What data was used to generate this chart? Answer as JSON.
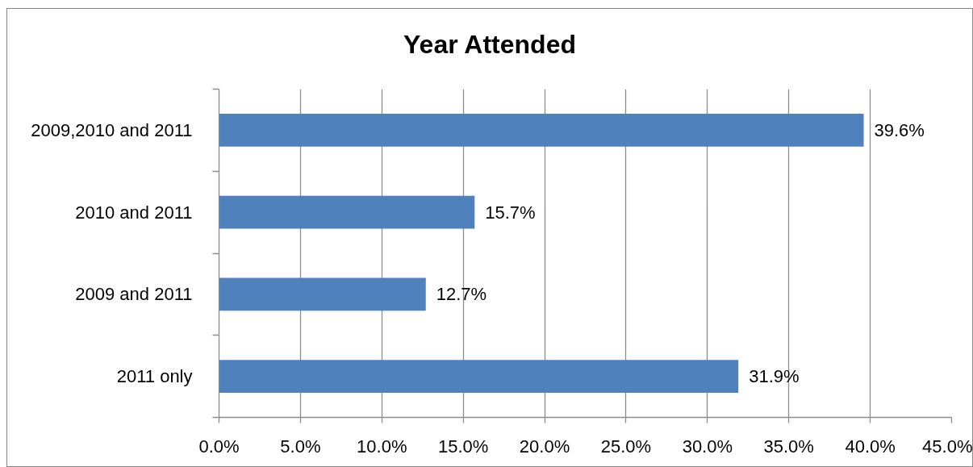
{
  "chart_data": {
    "type": "bar",
    "orientation": "horizontal",
    "title": "Year Attended",
    "categories": [
      "2009,2010 and 2011",
      "2010 and 2011",
      "2009 and 2011",
      "2011 only"
    ],
    "values": [
      39.6,
      15.7,
      12.7,
      31.9
    ],
    "value_labels": [
      "39.6%",
      "15.7%",
      "12.7%",
      "31.9%"
    ],
    "color": "#4f81bd",
    "xlim": [
      0,
      45
    ],
    "xticks": [
      {
        "value": 0,
        "label": "0.0%"
      },
      {
        "value": 5,
        "label": "5.0%"
      },
      {
        "value": 10,
        "label": "10.0%"
      },
      {
        "value": 15,
        "label": "15.0%"
      },
      {
        "value": 20,
        "label": "20.0%"
      },
      {
        "value": 25,
        "label": "25.0%"
      },
      {
        "value": 30,
        "label": "30.0%"
      },
      {
        "value": 35,
        "label": "35.0%"
      },
      {
        "value": 40,
        "label": "40.0%"
      },
      {
        "value": 45,
        "label": "45.0%"
      }
    ],
    "grid": "x"
  }
}
